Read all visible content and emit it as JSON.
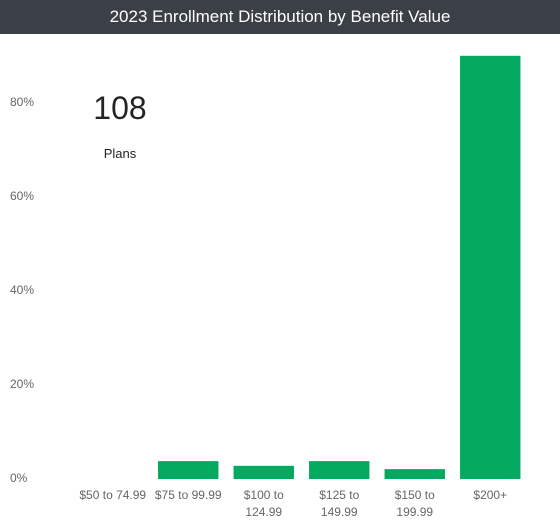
{
  "chart_data": {
    "type": "bar",
    "title": "2023 Enrollment Distribution by Benefit Value",
    "categories": [
      "$50 to 74.99",
      "$75 to 99.99",
      "$100 to 124.99",
      "$125 to 149.99",
      "$150 to 199.99",
      "$200+"
    ],
    "values": [
      0,
      3.8,
      2.8,
      3.8,
      2.1,
      90
    ],
    "color": "#02a95e",
    "ylim": [
      0,
      94
    ],
    "yticks": [
      {
        "value": 0,
        "label": "0%"
      },
      {
        "value": 20,
        "label": "20%"
      },
      {
        "value": 40,
        "label": "40%"
      },
      {
        "value": 60,
        "label": "60%"
      },
      {
        "value": 80,
        "label": "80%"
      }
    ],
    "grid": false
  },
  "card": {
    "value": 108,
    "label": "Plans"
  }
}
